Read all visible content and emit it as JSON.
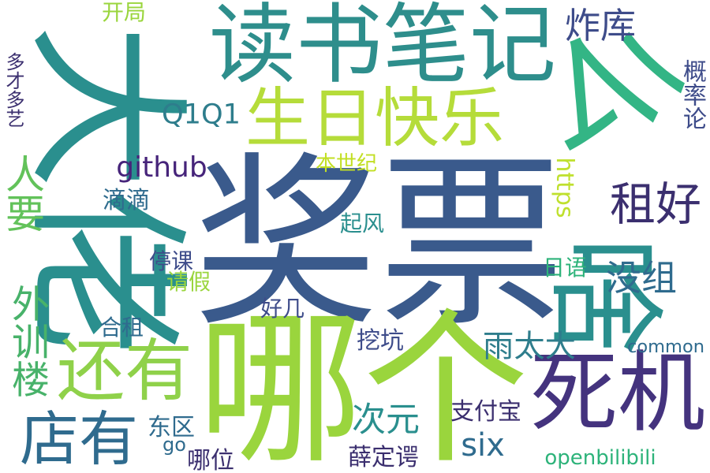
{
  "palette": {
    "navy": "#3e4c8a",
    "purple": "#46247a",
    "teal": "#2a8f8e",
    "green": "#2db37a",
    "lime": "#8fd14a",
    "yellow": "#c2df23",
    "blue": "#2f6b8e"
  },
  "words": [
    {
      "id": "w0",
      "text": "大佬",
      "color": "#2a8f8e"
    },
    {
      "id": "w1",
      "text": "奖票",
      "color": "#3a5a8c"
    },
    {
      "id": "w2",
      "text": "哪个",
      "color": "#9ad53d"
    },
    {
      "id": "w3",
      "text": "读书笔记",
      "color": "#2e8e8c"
    },
    {
      "id": "w4",
      "text": "生日快乐",
      "color": "#b5dc3a"
    },
    {
      "id": "w5",
      "text": "死机",
      "color": "#44337e"
    },
    {
      "id": "w6",
      "text": "还有",
      "color": "#8fd14a"
    },
    {
      "id": "w7",
      "text": "店有",
      "color": "#2f6b8e"
    },
    {
      "id": "w8",
      "text": "租好",
      "color": "#3b2f6f"
    },
    {
      "id": "w9",
      "text": "么",
      "color": "#33b585"
    },
    {
      "id": "w10",
      "text": "啥",
      "color": "#2a8f8e"
    },
    {
      "id": "w11",
      "text": "人要",
      "color": "#62c25a"
    },
    {
      "id": "w12",
      "text": "外训楼",
      "color": "#48b26a"
    },
    {
      "id": "w13",
      "text": "Q1Q1",
      "color": "#2e7d8c"
    },
    {
      "id": "w14",
      "text": "github",
      "color": "#46247a"
    },
    {
      "id": "w15",
      "text": "https",
      "color": "#bfe02e"
    },
    {
      "id": "w16",
      "text": "炸库",
      "color": "#3e4c8a"
    },
    {
      "id": "w17",
      "text": "开局",
      "color": "#9ad53d"
    },
    {
      "id": "w18",
      "text": "多才多艺",
      "color": "#3b2f6f"
    },
    {
      "id": "w19",
      "text": "概率论",
      "color": "#3e4c8a"
    },
    {
      "id": "w20",
      "text": "本世纪",
      "color": "#c2df23"
    },
    {
      "id": "w21",
      "text": "滴滴",
      "color": "#2f6b8e"
    },
    {
      "id": "w22",
      "text": "起风",
      "color": "#2a8f8e"
    },
    {
      "id": "w23",
      "text": "停课",
      "color": "#3e4c8a"
    },
    {
      "id": "w24",
      "text": "请假",
      "color": "#9ad53d"
    },
    {
      "id": "w25",
      "text": "日语",
      "color": "#2db37a"
    },
    {
      "id": "w26",
      "text": "没组",
      "color": "#2f6b8e"
    },
    {
      "id": "w27",
      "text": "好几",
      "color": "#3e4c8a"
    },
    {
      "id": "w28",
      "text": "合租",
      "color": "#2f6b8e"
    },
    {
      "id": "w29",
      "text": "挖坑",
      "color": "#3e4c8a"
    },
    {
      "id": "w30",
      "text": "雨太大",
      "color": "#2e7d8c"
    },
    {
      "id": "w31",
      "text": "common",
      "color": "#2f6b8e"
    },
    {
      "id": "w32",
      "text": "次元",
      "color": "#2a8f8e"
    },
    {
      "id": "w33",
      "text": "six",
      "color": "#2f6b8e"
    },
    {
      "id": "w34",
      "text": "支付宝",
      "color": "#3b2f6f"
    },
    {
      "id": "w35",
      "text": "东区",
      "color": "#2f6b8e"
    },
    {
      "id": "w36",
      "text": "go",
      "color": "#2f6b8e"
    },
    {
      "id": "w37",
      "text": "哪位",
      "color": "#3b2f6f"
    },
    {
      "id": "w38",
      "text": "薛定谔",
      "color": "#3b2f6f"
    },
    {
      "id": "w39",
      "text": "openbilibili",
      "color": "#2db37a"
    }
  ]
}
